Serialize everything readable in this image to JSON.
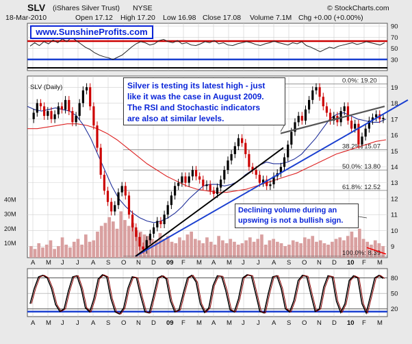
{
  "header": {
    "symbol": "SLV",
    "name": "(iShares Silver Trust)",
    "exchange": "NYSE",
    "date": "18-Mar-2010",
    "open": "Open 17.12",
    "high": "High 17.20",
    "low": "Low 16.98",
    "close": "Close 17.08",
    "volume": "Volume 7.1M",
    "change": "Chg +0.00 (+0.00%)",
    "copyright": "© StockCharts.com"
  },
  "watermark": "www.SunshineProfits.com",
  "annotations": {
    "silver_note_lines": [
      "Silver is testing its latest high - just",
      "like it was the case in August 2009.",
      "The RSI and Stochastic indicators",
      "are also at similar levels."
    ],
    "volume_note_lines": [
      "Declining volume during an",
      "upswing is not a bullish sign."
    ]
  },
  "colors": {
    "price_up": "#000000",
    "price_down": "#cc0000",
    "ma_50": "#1f2f9a",
    "ma_200": "#dd2222",
    "trend_line": "#1a3fd0",
    "volume": "#d9a0a0",
    "stoch": "#8b0000",
    "annotation_text": "#0a25d8"
  },
  "chart_data": [
    {
      "type": "line",
      "name": "rsi-panel",
      "title": "",
      "y_ticks": [
        30,
        50,
        70,
        90
      ],
      "ylim": [
        10,
        95
      ],
      "reference_lines": [
        {
          "value": 30,
          "color": "#1a3fd0"
        },
        {
          "value": 63,
          "color": "#cc0000"
        }
      ],
      "points": [
        54,
        60,
        55,
        62,
        58,
        65,
        60,
        67,
        62,
        70,
        64,
        58,
        52,
        48,
        42,
        38,
        35,
        33,
        30,
        34,
        38,
        45,
        52,
        58,
        62,
        60,
        56,
        58,
        64,
        66,
        62,
        60,
        64,
        58,
        60,
        56,
        55,
        58,
        62,
        60,
        64,
        58,
        60,
        56,
        55,
        58,
        60,
        62,
        60,
        57,
        55,
        58,
        60,
        63,
        60,
        58,
        56,
        60,
        58,
        62,
        55,
        52,
        48,
        44,
        48,
        52,
        50,
        54,
        56,
        58,
        60,
        57,
        59,
        62,
        60,
        58,
        56,
        60
      ]
    },
    {
      "type": "line",
      "name": "price-panel",
      "title": "SLV (Daily)",
      "y_ticks": [
        9,
        10,
        11,
        12,
        13,
        14,
        15,
        16,
        17,
        18,
        19
      ],
      "ylim": [
        8.3,
        19.7
      ],
      "x_labels": [
        "A",
        "M",
        "J",
        "J",
        "A",
        "S",
        "O",
        "N",
        "D",
        "09",
        "F",
        "M",
        "A",
        "M",
        "J",
        "J",
        "A",
        "S",
        "O",
        "N",
        "D",
        "10",
        "F",
        "M"
      ],
      "price": [
        17.0,
        17.4,
        18.0,
        17.8,
        17.2,
        17.5,
        17.0,
        17.3,
        17.8,
        17.6,
        18.2,
        17.5,
        16.8,
        17.2,
        18.0,
        18.8,
        19.0,
        17.8,
        16.6,
        15.2,
        13.5,
        12.5,
        11.8,
        11.2,
        11.6,
        12.4,
        12.8,
        12.2,
        11.0,
        10.2,
        9.6,
        9.0,
        8.8,
        9.4,
        9.8,
        10.2,
        10.6,
        10.4,
        11.0,
        11.6,
        12.2,
        12.8,
        13.0,
        13.4,
        13.0,
        13.4,
        13.8,
        13.4,
        13.2,
        12.8,
        12.9,
        12.5,
        12.3,
        12.7,
        13.2,
        13.8,
        14.4,
        14.8,
        15.3,
        15.8,
        15.5,
        14.8,
        14.0,
        13.8,
        13.5,
        13.0,
        13.2,
        12.8,
        12.9,
        13.4,
        13.6,
        14.0,
        14.6,
        15.4,
        16.2,
        16.8,
        17.2,
        16.9,
        17.6,
        18.2,
        18.8,
        19.0,
        18.4,
        17.8,
        17.4,
        16.9,
        17.2,
        16.8,
        17.5,
        17.8,
        16.9,
        16.4,
        16.7,
        15.4,
        15.9,
        16.4,
        16.9,
        17.1,
        17.3,
        17.0,
        17.08
      ],
      "ma_50": [
        17.8,
        17.6,
        17.5,
        17.6,
        17.7,
        17.6,
        17.5,
        17.2,
        16.6,
        15.8,
        14.8,
        13.8,
        12.8,
        12.0,
        11.5,
        11.1,
        10.8,
        10.6,
        10.5,
        10.6,
        10.8,
        11.1,
        11.5,
        12.0,
        12.4,
        12.8,
        12.9,
        12.9,
        12.8,
        12.9,
        13.1,
        13.5,
        13.8,
        14.1,
        14.3,
        14.2,
        14.2,
        14.3,
        14.5,
        14.8,
        15.3,
        15.8,
        16.4,
        17.0,
        17.3,
        17.4,
        17.2,
        17.0,
        16.9,
        16.8,
        16.8,
        17.0
      ],
      "ma_200": [
        16.4,
        16.4,
        16.5,
        16.6,
        16.7,
        16.7,
        16.6,
        16.4,
        16.1,
        15.7,
        15.2,
        14.7,
        14.2,
        13.8,
        13.4,
        13.1,
        12.8,
        12.6,
        12.5,
        12.4,
        12.4,
        12.5,
        12.6,
        12.8,
        13.0,
        13.2,
        13.4,
        13.6,
        13.9,
        14.2,
        14.5,
        14.8,
        15.0,
        15.2,
        15.4,
        15.6,
        15.7
      ],
      "fibonacci": [
        {
          "label": "0.0%: 19.20",
          "value": 19.2
        },
        {
          "label": "38.2%: 15.07",
          "value": 15.07
        },
        {
          "label": "50.0%: 13.80",
          "value": 13.8
        },
        {
          "label": "61.8%: 12.52",
          "value": 12.52
        },
        {
          "label": "100.0%: 8.39",
          "value": 8.39
        }
      ],
      "volume_ticks": [
        "10M",
        "20M",
        "30M",
        "40M"
      ],
      "volume_millions": [
        8,
        6,
        10,
        7,
        9,
        12,
        6,
        8,
        14,
        9,
        7,
        11,
        13,
        9,
        16,
        11,
        12,
        18,
        22,
        24,
        28,
        25,
        20,
        32,
        26,
        22,
        24,
        19,
        18,
        16,
        15,
        13,
        12,
        17,
        13,
        15,
        11,
        10,
        14,
        12,
        16,
        18,
        13,
        12,
        10,
        14,
        11,
        9,
        15,
        12,
        10,
        13,
        11,
        9,
        10,
        12,
        14,
        11,
        13,
        16,
        9,
        12,
        13,
        11,
        10,
        8,
        9,
        12,
        11,
        10,
        14,
        13,
        15,
        11,
        12,
        10,
        9,
        11,
        13,
        14,
        12,
        15,
        18,
        14,
        20,
        13,
        11,
        9,
        12,
        10,
        8
      ]
    },
    {
      "type": "line",
      "name": "stochastic-panel",
      "title": "",
      "y_ticks": [
        20,
        50,
        80
      ],
      "ylim": [
        5,
        98
      ],
      "x_labels": [
        "A",
        "M",
        "J",
        "J",
        "A",
        "S",
        "O",
        "N",
        "D",
        "09",
        "F",
        "M",
        "A",
        "M",
        "J",
        "J",
        "A",
        "S",
        "O",
        "N",
        "D",
        "10",
        "F",
        "M"
      ],
      "points": [
        30,
        60,
        82,
        85,
        80,
        60,
        28,
        15,
        20,
        55,
        82,
        84,
        60,
        22,
        14,
        40,
        78,
        86,
        82,
        40,
        14,
        10,
        22,
        60,
        82,
        80,
        45,
        14,
        12,
        45,
        80,
        84,
        78,
        35,
        14,
        18,
        50,
        80,
        85,
        72,
        30,
        13,
        22,
        65,
        84,
        83,
        55,
        18,
        14,
        40,
        80,
        86,
        84,
        50,
        15,
        12,
        50,
        82,
        84,
        60,
        20,
        14,
        36,
        75,
        85,
        83,
        48,
        15,
        20,
        62,
        84,
        82,
        35,
        13,
        30,
        75,
        84,
        80,
        30,
        12,
        45,
        80,
        85,
        79
      ]
    }
  ]
}
